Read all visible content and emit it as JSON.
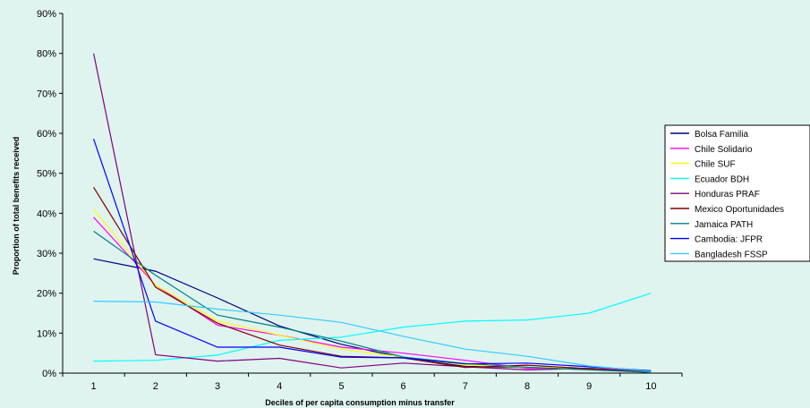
{
  "chart_data": {
    "type": "line",
    "title": "",
    "xlabel": "Deciles of per capita consumption minus transfer",
    "ylabel": "Proportion of total benefits received",
    "categories": [
      "1",
      "2",
      "3",
      "4",
      "5",
      "6",
      "7",
      "8",
      "9",
      "10"
    ],
    "ylim": [
      0,
      90
    ],
    "y_ticks": [
      "0%",
      "10%",
      "20%",
      "30%",
      "40%",
      "50%",
      "60%",
      "70%",
      "80%",
      "90%"
    ],
    "grid": false,
    "legend_position": "right",
    "series": [
      {
        "name": "Bolsa Familia",
        "color": "#000080",
        "values": [
          28.6,
          25.5,
          18.8,
          11.8,
          7.2,
          3.8,
          1.7,
          1.4,
          0.9,
          0.3
        ]
      },
      {
        "name": "Chile Solidario",
        "color": "#ff00ff",
        "values": [
          39.0,
          22.0,
          12.0,
          9.5,
          6.5,
          5.0,
          3.2,
          1.2,
          1.2,
          0.4
        ]
      },
      {
        "name": "Chile SUF",
        "color": "#ffff00",
        "values": [
          41.0,
          22.0,
          13.0,
          9.5,
          6.0,
          4.0,
          2.0,
          1.5,
          1.0,
          0.2
        ]
      },
      {
        "name": "Ecuador BDH",
        "color": "#00ffff",
        "values": [
          3.0,
          3.2,
          4.5,
          8.2,
          9.0,
          11.5,
          13.0,
          13.3,
          15.0,
          20.0
        ]
      },
      {
        "name": "Honduras PRAF",
        "color": "#800080",
        "values": [
          80.0,
          4.6,
          3.0,
          3.7,
          1.3,
          2.5,
          1.6,
          0.8,
          1.2,
          0.3
        ]
      },
      {
        "name": "Mexico Oportunidades",
        "color": "#800000",
        "values": [
          46.5,
          21.5,
          12.5,
          7.0,
          4.2,
          3.8,
          1.4,
          2.0,
          1.1,
          0.2
        ]
      },
      {
        "name": "Jamaica PATH",
        "color": "#008080",
        "values": [
          35.5,
          24.5,
          14.5,
          11.5,
          8.0,
          4.0,
          2.4,
          1.5,
          0.8,
          0.2
        ]
      },
      {
        "name": "Cambodia: JFPR",
        "color": "#0000ff",
        "values": [
          58.6,
          13.0,
          6.5,
          6.5,
          4.0,
          3.8,
          2.3,
          2.5,
          1.6,
          0.6
        ]
      },
      {
        "name": "Bangladesh FSSP",
        "color": "#33ccff",
        "values": [
          18.0,
          17.8,
          16.0,
          14.5,
          12.7,
          9.2,
          6.0,
          4.2,
          1.8,
          0.4
        ]
      }
    ]
  }
}
